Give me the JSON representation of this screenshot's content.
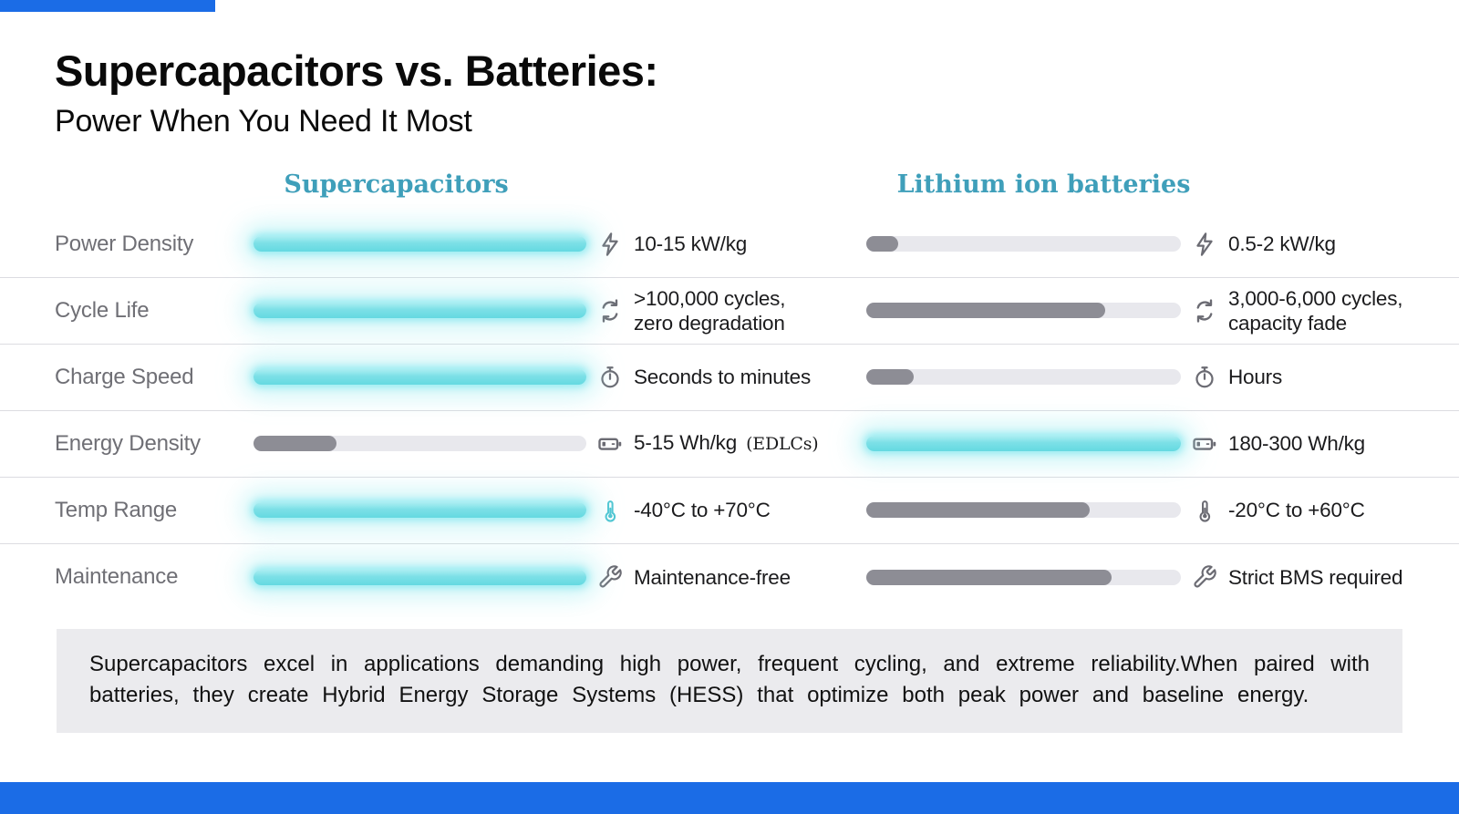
{
  "title": {
    "line1": "Supercapacitors vs. Batteries:",
    "line2": "Power When You Need It Most"
  },
  "columns": {
    "left": "Supercapacitors",
    "right": "Lithium ion batteries"
  },
  "colors": {
    "accent_blue": "#1b6ce6",
    "header_teal": "#3f9fba",
    "cyan_bar": "#7ce0e7",
    "gray_bar": "#8d8d95",
    "track_gray": "#e8e8ed",
    "label_gray": "#6f6f75",
    "summary_bg": "#ebebee"
  },
  "rows": [
    {
      "label": "Power Density",
      "icon": "lightning-icon",
      "left": {
        "style": "cyan",
        "fill_pct": "100%",
        "value": "10-15 kW/kg"
      },
      "right": {
        "style": "gray",
        "fill_pct": "10%",
        "value": "0.5-2 kW/kg"
      }
    },
    {
      "label": "Cycle Life",
      "icon": "cycle-icon",
      "left": {
        "style": "cyan",
        "fill_pct": "100%",
        "value": ">100,000 cycles,",
        "value2": "zero degradation"
      },
      "right": {
        "style": "gray",
        "fill_pct": "76%",
        "value": "3,000-6,000 cycles,",
        "value2": "capacity fade"
      }
    },
    {
      "label": "Charge Speed",
      "icon": "stopwatch-icon",
      "left": {
        "style": "cyan",
        "fill_pct": "100%",
        "value": "Seconds to minutes"
      },
      "right": {
        "style": "gray",
        "fill_pct": "15%",
        "value": "Hours"
      }
    },
    {
      "label": "Energy Density",
      "icon": "battery-icon",
      "left": {
        "style": "gray",
        "fill_pct": "25%",
        "value": "5-15 Wh/kg",
        "note": "(EDLCs)"
      },
      "right": {
        "style": "cyan",
        "fill_pct": "100%",
        "value": "180-300 Wh/kg"
      }
    },
    {
      "label": "Temp Range",
      "icon": "thermometer-icon",
      "left": {
        "style": "cyan",
        "fill_pct": "100%",
        "value": "-40°C to +70°C"
      },
      "right": {
        "style": "gray",
        "fill_pct": "71%",
        "value": "-20°C to +60°C"
      }
    },
    {
      "label": "Maintenance",
      "icon": "wrench-icon",
      "left": {
        "style": "cyan",
        "fill_pct": "100%",
        "value": "Maintenance-free"
      },
      "right": {
        "style": "gray",
        "fill_pct": "78%",
        "value": "Strict BMS required"
      }
    }
  ],
  "summary": {
    "line1": "Supercapacitors excel in applications demanding high power, frequent cycling, and extreme reliability.When paired with",
    "line2": "batteries, they create Hybrid Energy Storage Systems (HESS) that optimize both peak power and baseline energy."
  },
  "chart_data": {
    "type": "bar",
    "title": "Supercapacitors vs. Batteries: Power When You Need It Most",
    "categories": [
      "Power Density",
      "Cycle Life",
      "Charge Speed",
      "Energy Density",
      "Temp Range",
      "Maintenance"
    ],
    "series": [
      {
        "name": "Supercapacitors",
        "values": [
          1.0,
          1.0,
          1.0,
          0.25,
          1.0,
          1.0
        ],
        "labels": [
          "10-15 kW/kg",
          ">100,000 cycles, zero degradation",
          "Seconds to minutes",
          "5-15 Wh/kg (EDLCs)",
          "-40°C to +70°C",
          "Maintenance-free"
        ]
      },
      {
        "name": "Lithium ion batteries",
        "values": [
          0.1,
          0.76,
          0.15,
          1.0,
          0.71,
          0.78
        ],
        "labels": [
          "0.5-2 kW/kg",
          "3,000-6,000 cycles, capacity fade",
          "Hours",
          "180-300 Wh/kg",
          "-20°C to +60°C",
          "Strict BMS required"
        ]
      }
    ],
    "value_meaning": "qualitative filled fraction of each comparison bar (0-1)",
    "highlight_rule": "winning side rendered as glowing cyan bar, other side gray",
    "legend_position": "column headers above bars",
    "grid": false
  }
}
